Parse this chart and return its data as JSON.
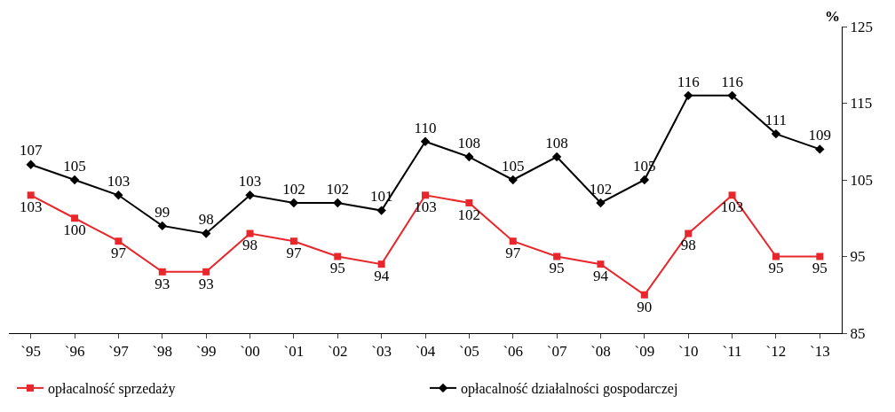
{
  "chart_data": {
    "type": "line",
    "ylabel": "%",
    "categories": [
      "`95",
      "`96",
      "`97",
      "`98",
      "`99",
      "`00",
      "`01",
      "`02",
      "`03",
      "`04",
      "`05",
      "`06",
      "`07",
      "`08",
      "`09",
      "`10",
      "`11",
      "`12",
      "`13"
    ],
    "series": [
      {
        "name": "opłacalność sprzedaży",
        "color": "#e8262b",
        "marker": "square",
        "values": [
          103,
          100,
          97,
          93,
          93,
          98,
          97,
          95,
          94,
          103,
          102,
          97,
          95,
          94,
          90,
          98,
          103,
          95,
          95
        ]
      },
      {
        "name": "opłacalność działalności gospodarczej",
        "color": "#000000",
        "marker": "diamond",
        "values": [
          107,
          105,
          103,
          99,
          98,
          103,
          102,
          102,
          101,
          110,
          108,
          105,
          108,
          102,
          105,
          116,
          116,
          111,
          109
        ]
      }
    ],
    "ylim": [
      85,
      125
    ],
    "yticks": [
      85,
      95,
      105,
      115,
      125
    ],
    "legend": "bottom",
    "data_labels": true,
    "line_style": "solid"
  }
}
